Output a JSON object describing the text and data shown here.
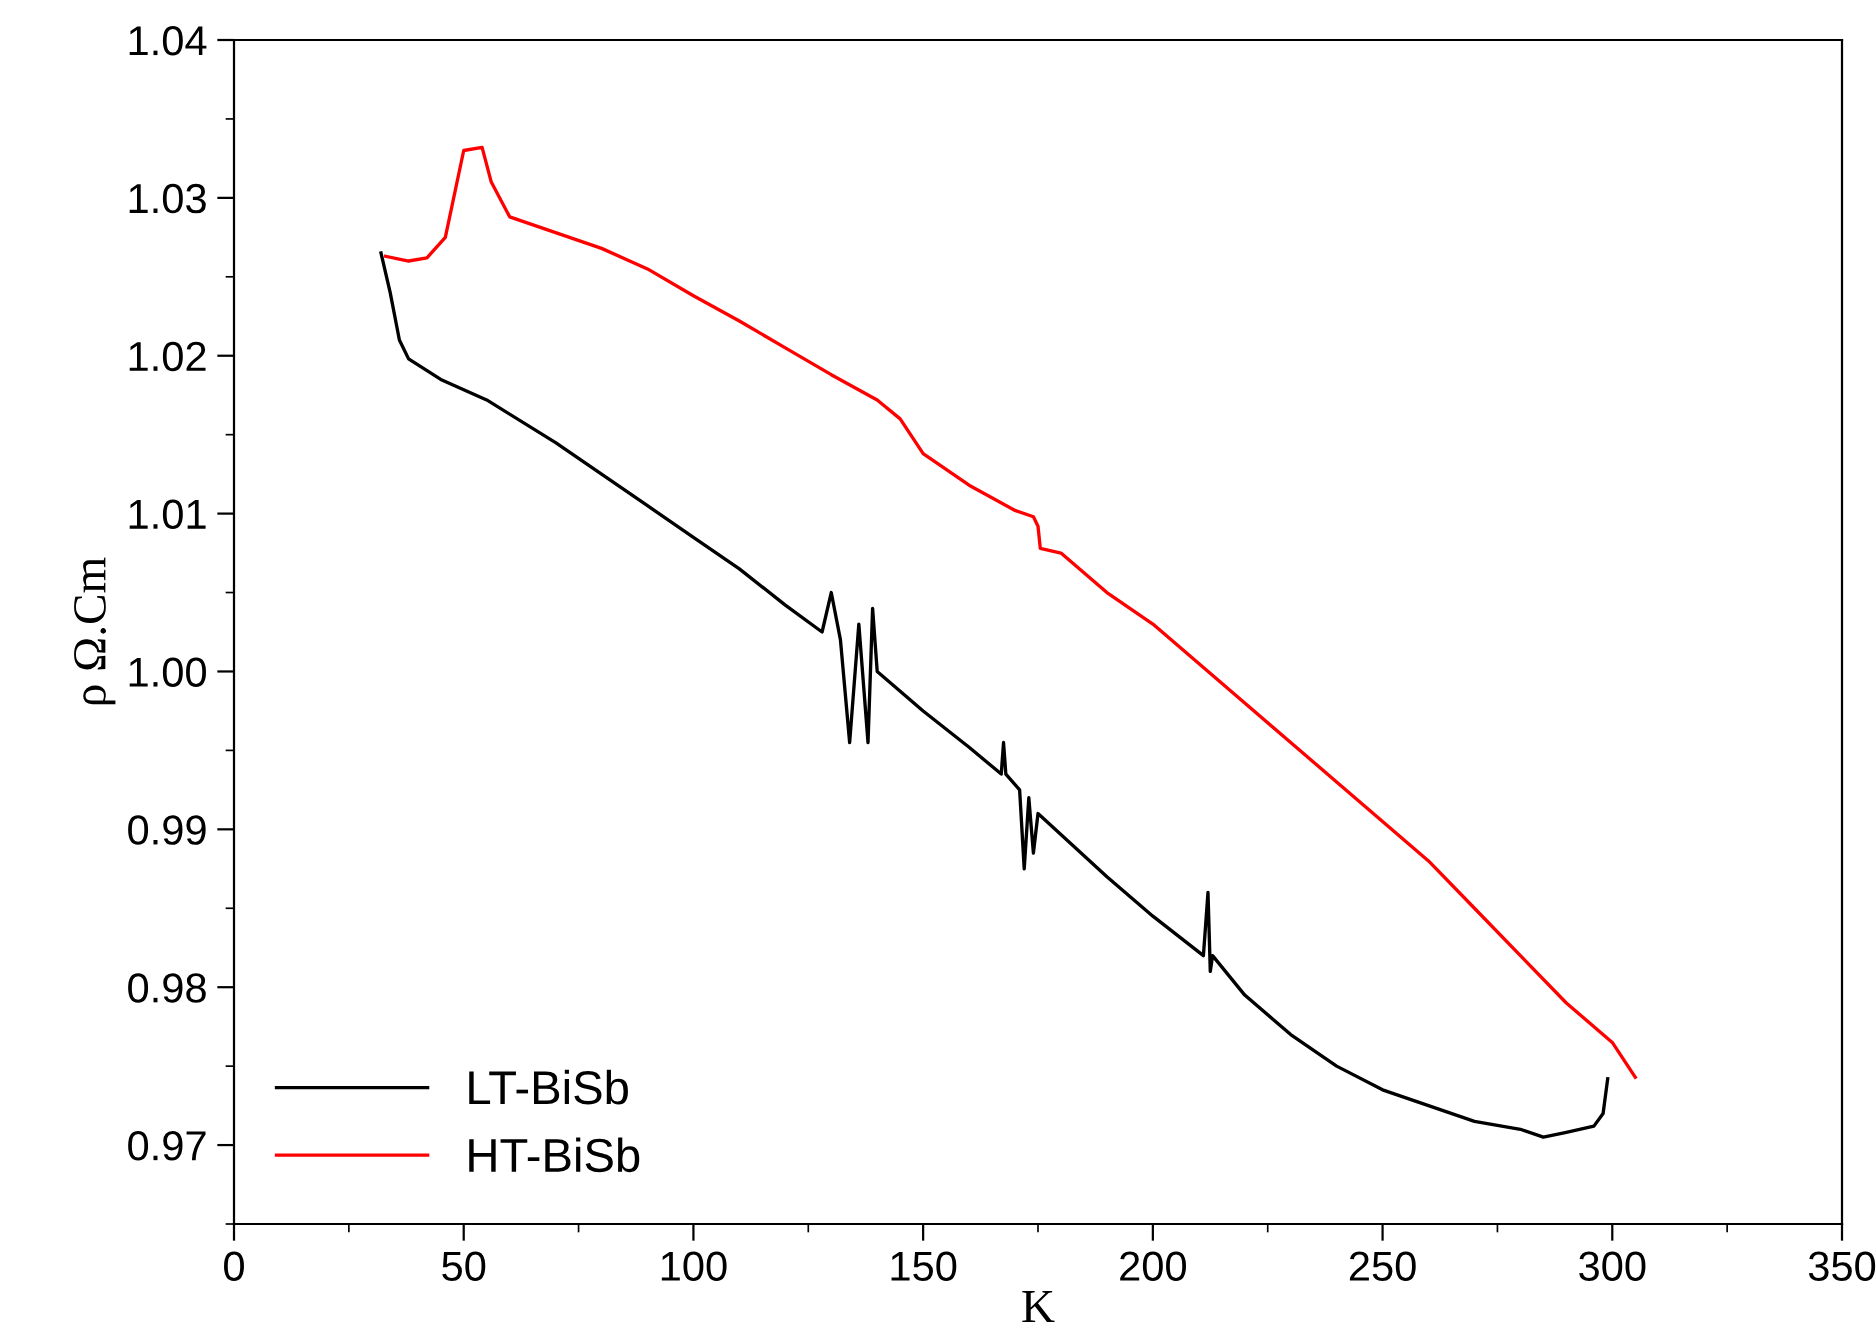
{
  "chart_data": {
    "type": "line",
    "xlabel": "K",
    "ylabel": "ρ Ω.Cm",
    "xlim": [
      0,
      350
    ],
    "xticks": [
      0,
      50,
      100,
      150,
      200,
      250,
      300,
      350
    ],
    "ylim": [
      0.965,
      1.04
    ],
    "yticks": [
      {
        "value": 0.97,
        "label": "0.97"
      },
      {
        "value": 0.98,
        "label": "0.98"
      },
      {
        "value": 0.99,
        "label": "0.99"
      },
      {
        "value": 1.0,
        "label": "1.00"
      },
      {
        "value": 1.01,
        "label": "1.01"
      },
      {
        "value": 1.02,
        "label": "1.02"
      },
      {
        "value": 1.03,
        "label": "1.03"
      },
      {
        "value": 1.04,
        "label": "1.04"
      }
    ],
    "grid": false,
    "legend": "bottom left",
    "line_style": "solid",
    "marker": "none",
    "series": [
      {
        "name": "LT-BiSb",
        "color": "#000000",
        "x": [
          32,
          34,
          36,
          38,
          45,
          55,
          70,
          80,
          90,
          100,
          110,
          120,
          128,
          130,
          132,
          134,
          136,
          138,
          139,
          140,
          150,
          160,
          167,
          167.5,
          168,
          171,
          172,
          173,
          174,
          175,
          190,
          200,
          211,
          212,
          212.5,
          213,
          220,
          230,
          240,
          250,
          260,
          270,
          280,
          285,
          290,
          296,
          298,
          299
        ],
        "values": [
          1.0265,
          1.024,
          1.021,
          1.0198,
          1.0185,
          1.0172,
          1.0145,
          1.0125,
          1.0105,
          1.0085,
          1.0065,
          1.0042,
          1.0025,
          1.005,
          1.002,
          0.9955,
          1.003,
          0.9955,
          1.004,
          1.0,
          0.9975,
          0.9952,
          0.9935,
          0.9955,
          0.9935,
          0.9925,
          0.9875,
          0.992,
          0.9885,
          0.991,
          0.987,
          0.9845,
          0.982,
          0.986,
          0.981,
          0.982,
          0.9795,
          0.977,
          0.975,
          0.9735,
          0.9725,
          0.9715,
          0.971,
          0.9705,
          0.9708,
          0.9712,
          0.972,
          0.9742
        ]
      },
      {
        "name": "HT-BiSb",
        "color": "#ff0000",
        "x": [
          33,
          38,
          42,
          46,
          50,
          54,
          56,
          60,
          70,
          80,
          90,
          100,
          110,
          120,
          130,
          140,
          145,
          150,
          160,
          170,
          174,
          175,
          175.5,
          180,
          190,
          200,
          210,
          220,
          230,
          240,
          250,
          260,
          270,
          280,
          290,
          300,
          305
        ],
        "values": [
          1.0263,
          1.026,
          1.0262,
          1.0275,
          1.033,
          1.0332,
          1.031,
          1.0288,
          1.0278,
          1.0268,
          1.0255,
          1.0238,
          1.0222,
          1.0205,
          1.0188,
          1.0172,
          1.016,
          1.0138,
          1.0118,
          1.0102,
          1.0098,
          1.0092,
          1.0078,
          1.0075,
          1.005,
          1.003,
          1.0005,
          0.998,
          0.9955,
          0.993,
          0.9905,
          0.988,
          0.985,
          0.982,
          0.979,
          0.9765,
          0.9743
        ]
      }
    ]
  }
}
